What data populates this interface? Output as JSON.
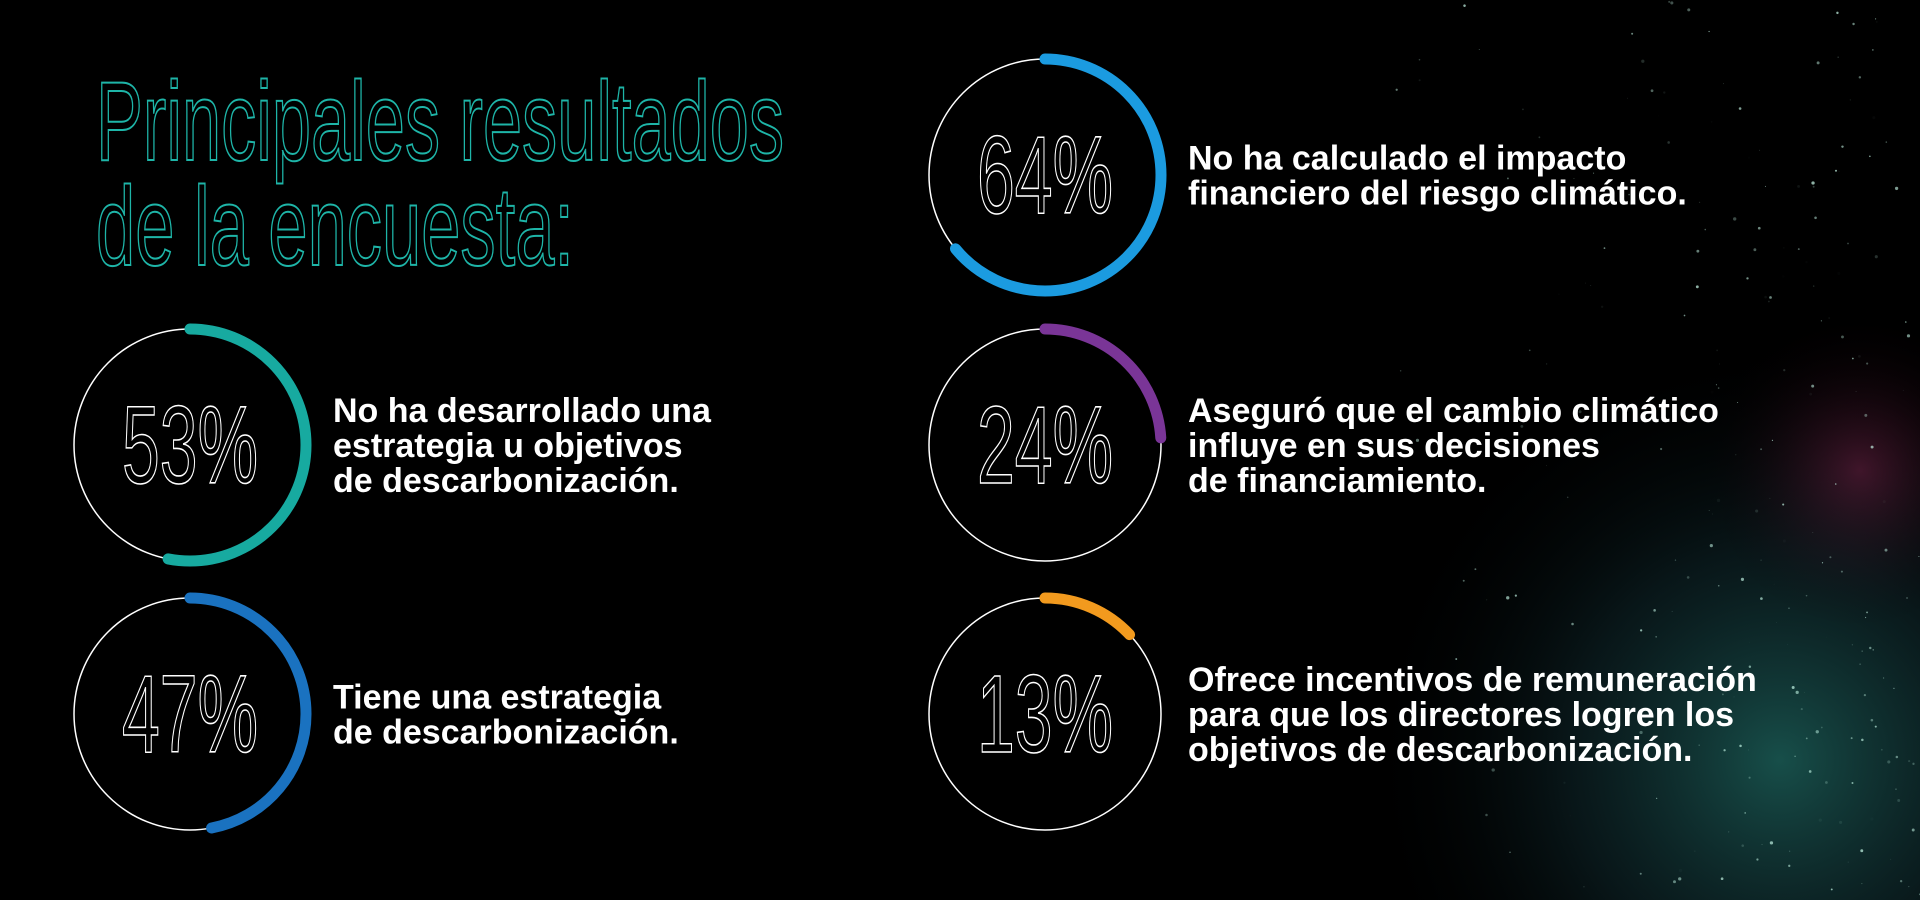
{
  "title": [
    "Principales resultados",
    "de la encuesta:"
  ],
  "stats": [
    {
      "value": 53,
      "label": "53%",
      "color": "#17aaa0",
      "text": [
        "No ha desarrollado una",
        "estrategia u objetivos",
        "de descarbonización."
      ]
    },
    {
      "value": 47,
      "label": "47%",
      "color": "#1a72c0",
      "text": [
        "Tiene una estrategia",
        "de descarbonización."
      ]
    },
    {
      "value": 64,
      "label": "64%",
      "color": "#1b9be0",
      "text": [
        "No ha calculado el impacto",
        "financiero del riesgo climático."
      ]
    },
    {
      "value": 24,
      "label": "24%",
      "color": "#7a3597",
      "text": [
        "Aseguró que el cambio climático",
        "influye en sus decisiones",
        "de financiamiento."
      ]
    },
    {
      "value": 13,
      "label": "13%",
      "color": "#f29a1e",
      "text": [
        "Ofrece incentivos de remuneración",
        "para que los directores logren los",
        "objetivos de descarbonización."
      ]
    }
  ]
}
